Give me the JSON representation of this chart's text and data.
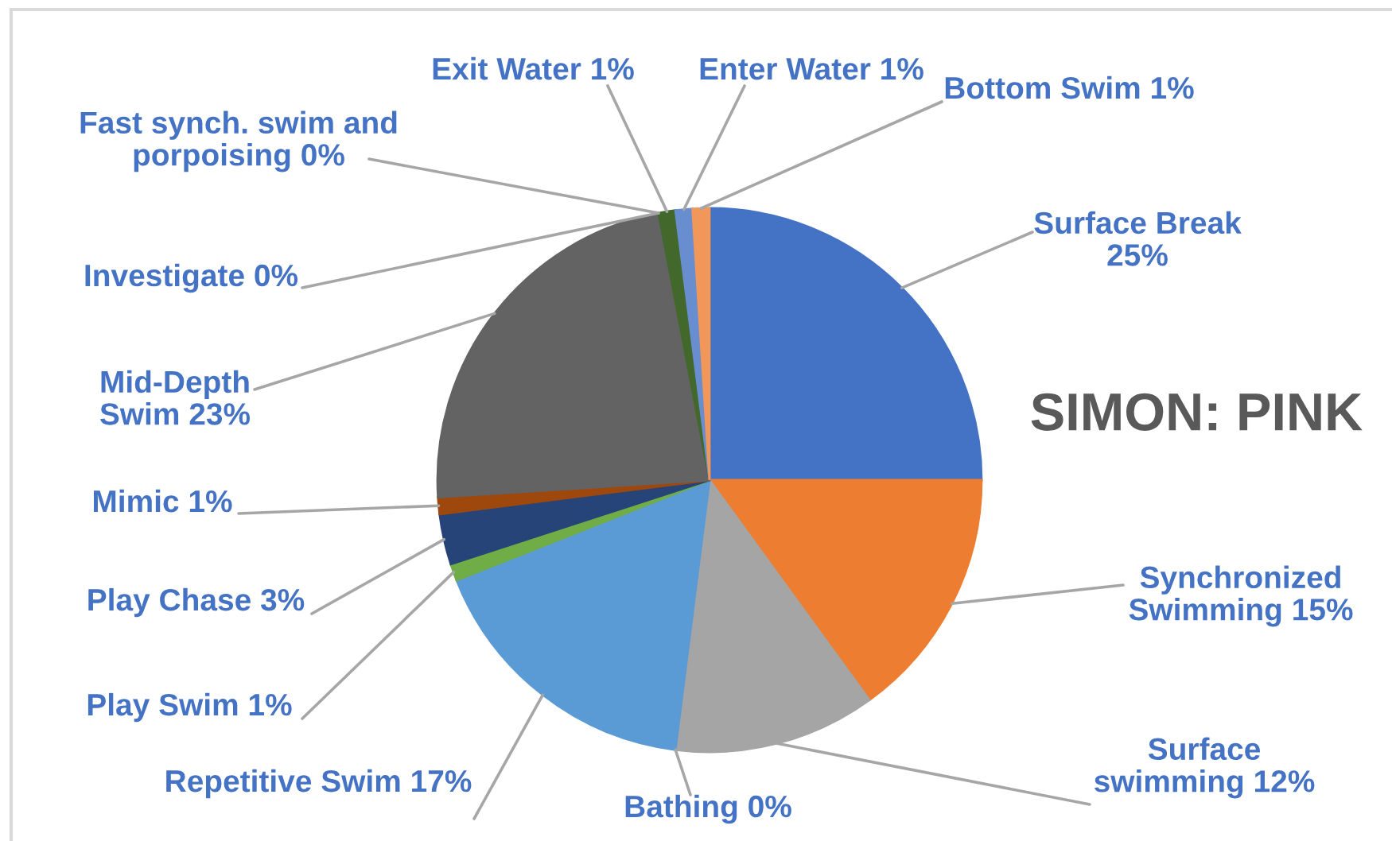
{
  "chart_data": {
    "type": "pie",
    "title": "SIMON: PINK",
    "categories": [
      "Surface Break",
      "Synchronized Swimming",
      "Surface swimming",
      "Bathing",
      "Repetitive Swim",
      "Play Swim",
      "Play Chase",
      "Mimic",
      "Mid-Depth Swim",
      "Investigate",
      "Fast synch. swim and porpoising",
      "Exit Water",
      "Enter Water",
      "Bottom Swim"
    ],
    "values": [
      25,
      15,
      12,
      0,
      17,
      1,
      3,
      1,
      23,
      0,
      0,
      1,
      1,
      1
    ],
    "value_labels": [
      "25%",
      "15%",
      "12%",
      "0%",
      "17%",
      "1%",
      "3%",
      "1%",
      "23%",
      "0%",
      "0%",
      "1%",
      "1%",
      "1%"
    ],
    "colors": [
      "#4472c4",
      "#ed7d31",
      "#a5a5a5",
      "#ffc000",
      "#5b9bd5",
      "#70ad47",
      "#264478",
      "#9e480e",
      "#636363",
      "#997300",
      "#255e91",
      "#43682b",
      "#698ed0",
      "#f1975a"
    ]
  }
}
